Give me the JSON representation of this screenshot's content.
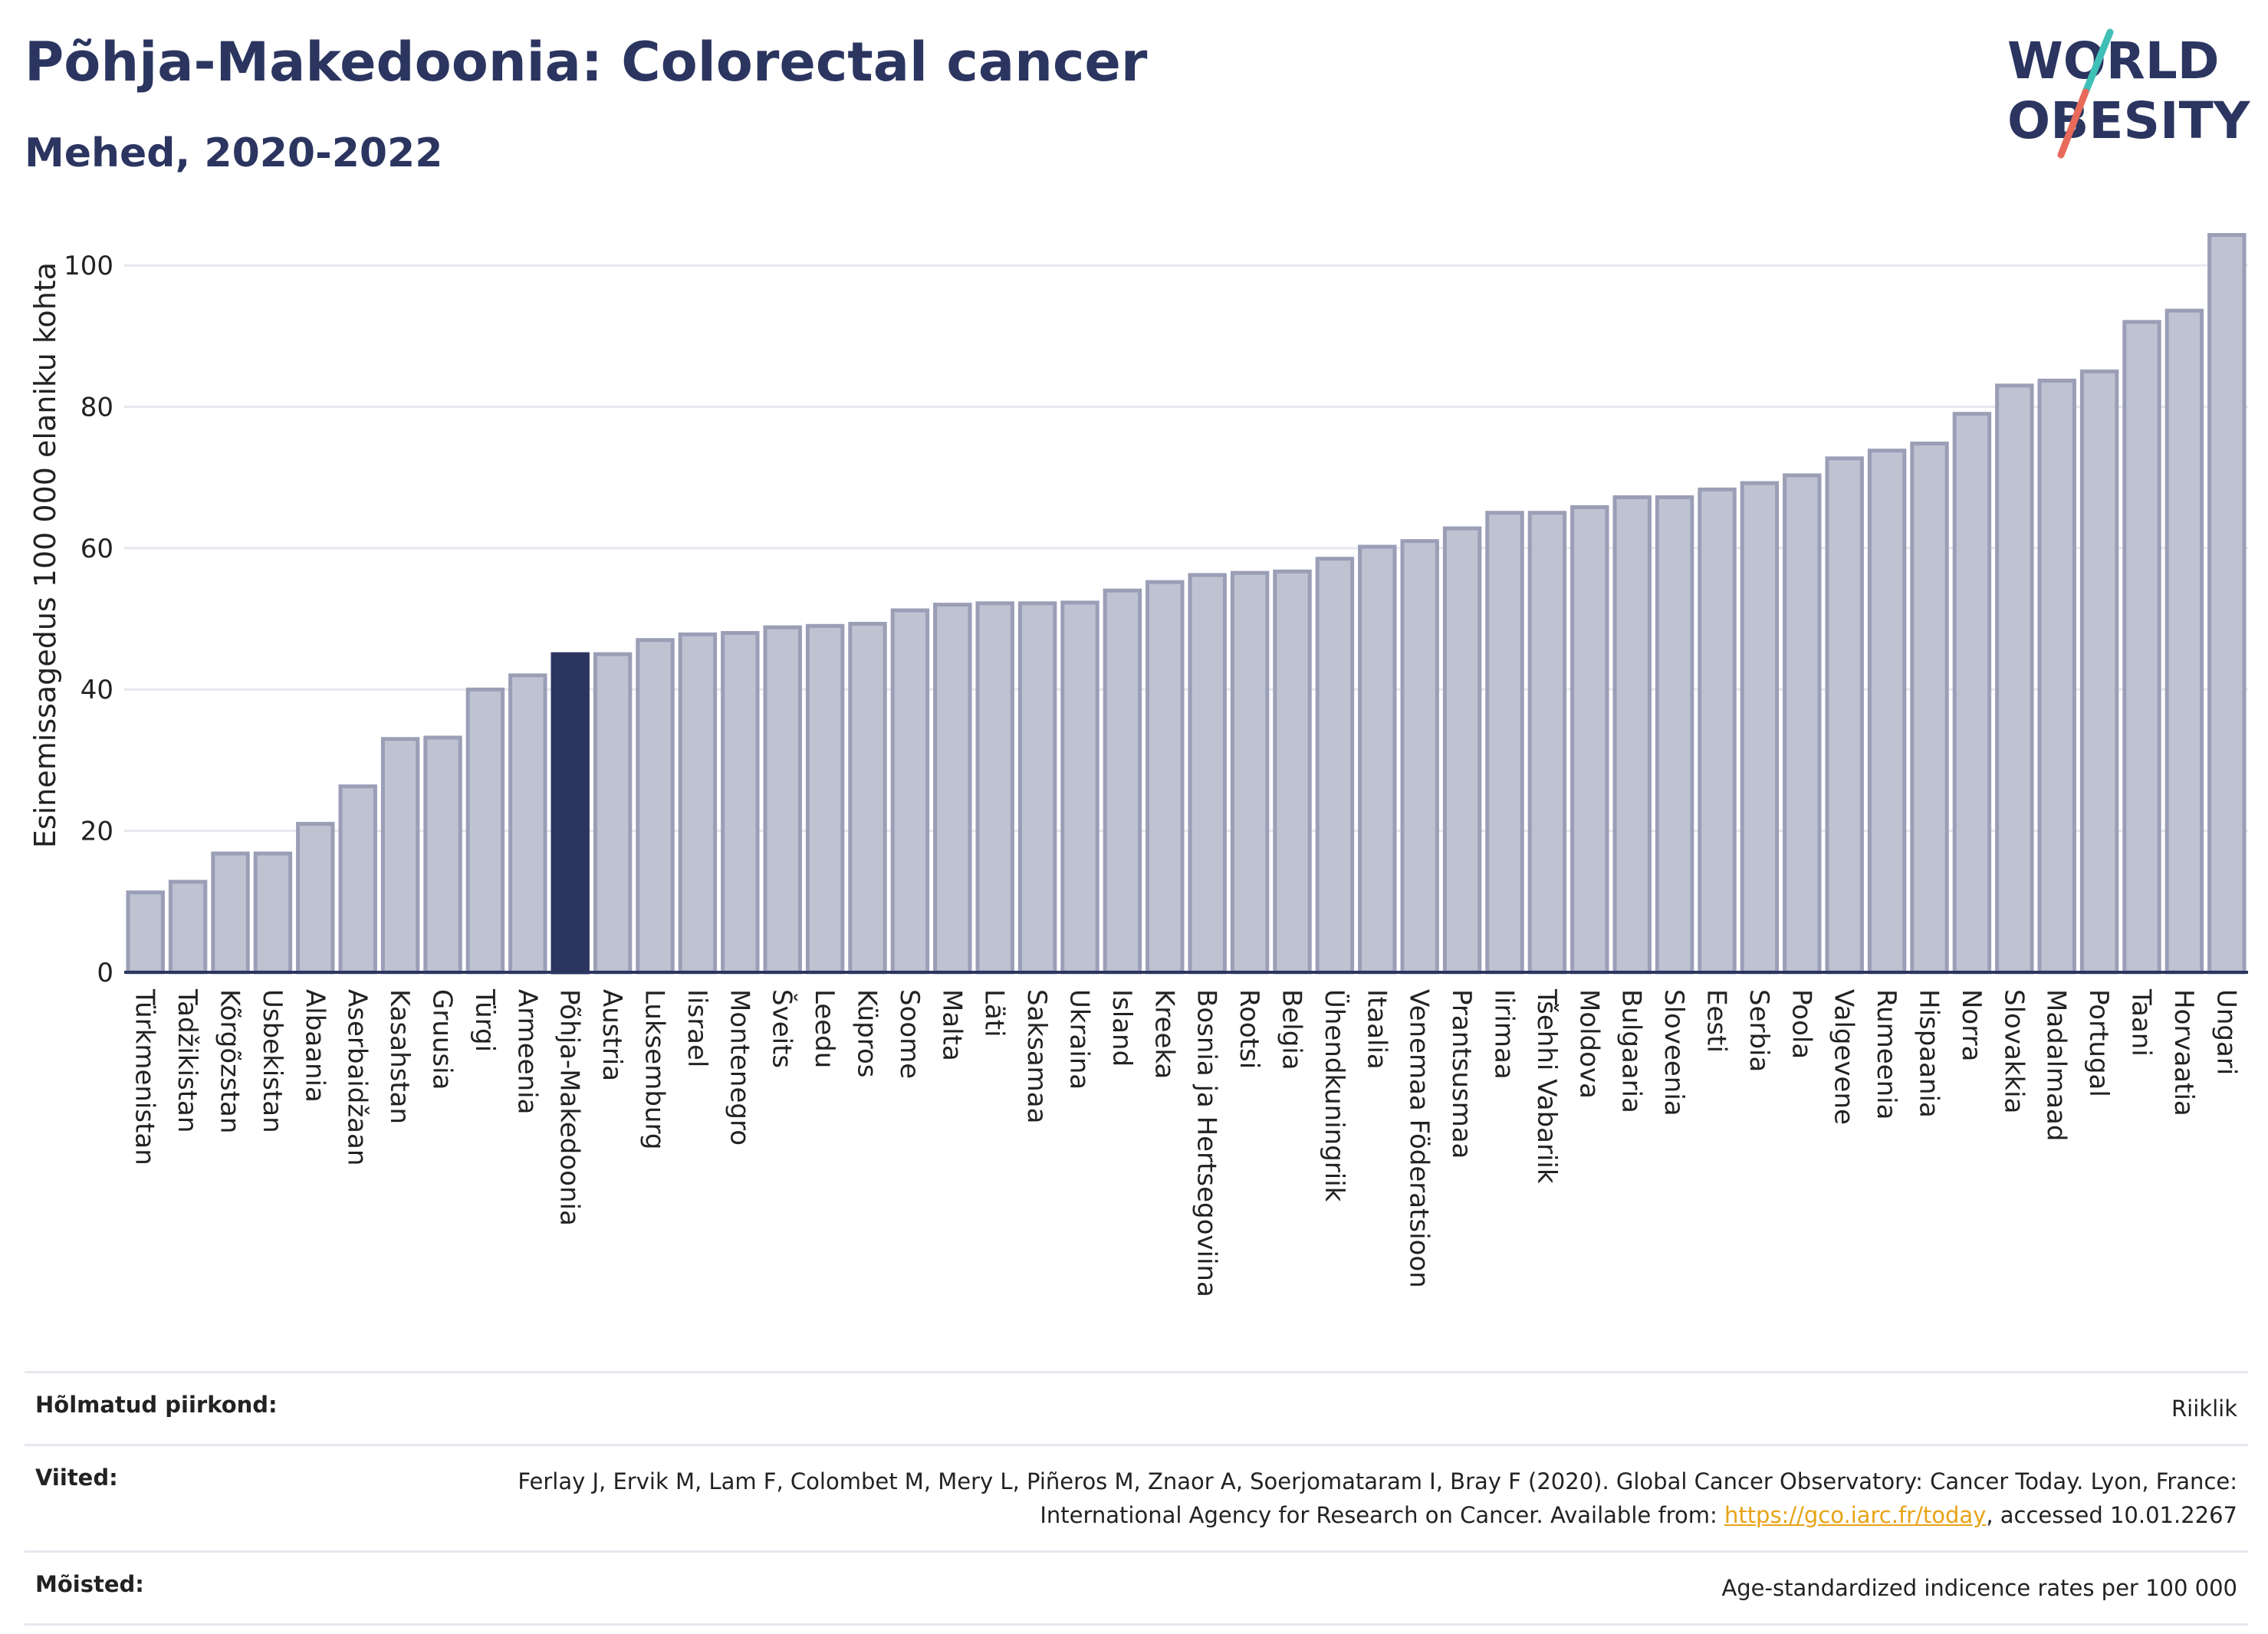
{
  "header": {
    "title": "Põhja-Makedoonia: Colorectal cancer",
    "subtitle": "Mehed, 2020-2022"
  },
  "logo": {
    "line1": "WORLD",
    "line2": "OBESITY",
    "colors": {
      "text": "#2b3560",
      "slash_teal": "#3fbfb5",
      "slash_red": "#e86a5a"
    }
  },
  "chart_data": {
    "type": "bar",
    "title": "Põhja-Makedoonia: Colorectal cancer",
    "subtitle": "Mehed, 2020-2022",
    "ylabel": "Esinemissagedus 100 000 elaniku kohta",
    "xlabel": "",
    "ylim": [
      0,
      105
    ],
    "yticks": [
      0,
      20,
      40,
      60,
      80,
      100
    ],
    "grid": true,
    "highlight": "Põhja-Makedoonia",
    "colors": {
      "bar": "#bfc2d1",
      "bar_border": "#9a9eb6",
      "highlight": "#2b3560"
    },
    "categories": [
      "Türkmenistan",
      "Tadžikistan",
      "Kõrgõzstan",
      "Usbekistan",
      "Albaania",
      "Aserbaidžaan",
      "Kasahstan",
      "Gruusia",
      "Türgi",
      "Armeenia",
      "Põhja-Makedoonia",
      "Austria",
      "Luksemburg",
      "Iisrael",
      "Montenegro",
      "Šveits",
      "Leedu",
      "Küpros",
      "Soome",
      "Malta",
      "Läti",
      "Saksamaa",
      "Ukraina",
      "Island",
      "Kreeka",
      "Bosnia ja Hertsegoviina",
      "Rootsi",
      "Belgia",
      "Ühendkuningriik",
      "Itaalia",
      "Venemaa Föderatsioon",
      "Prantsusmaa",
      "Iirimaa",
      "Tšehhi Vabariik",
      "Moldova",
      "Bulgaaria",
      "Sloveenia",
      "Eesti",
      "Serbia",
      "Poola",
      "Valgevene",
      "Rumeenia",
      "Hispaania",
      "Norra",
      "Slovakkia",
      "Madalmaad",
      "Portugal",
      "Taani",
      "Horvaatia",
      "Ungari"
    ],
    "values": [
      11.3,
      12.8,
      16.8,
      16.8,
      21.0,
      26.3,
      33.0,
      33.2,
      40.0,
      42.0,
      45.0,
      45.0,
      47.0,
      47.8,
      48.0,
      48.8,
      49.0,
      49.3,
      51.2,
      52.0,
      52.2,
      52.2,
      52.3,
      54.0,
      55.2,
      56.2,
      56.5,
      56.7,
      58.5,
      60.2,
      61.0,
      62.8,
      65.0,
      65.0,
      65.8,
      67.2,
      67.2,
      68.3,
      69.2,
      70.3,
      72.7,
      73.8,
      74.8,
      79.0,
      83.0,
      83.7,
      85.0,
      92.0,
      93.6,
      104.3
    ]
  },
  "footer": {
    "rows": [
      {
        "label": "Hõlmatud piirkond:",
        "value": "Riiklik"
      },
      {
        "label": "Viited:",
        "value": "Ferlay J, Ervik M, Lam F, Colombet M, Mery L, Piñeros M, Znaor A, Soerjomataram I, Bray F (2020). Global Cancer Observatory: Cancer Today. Lyon, France: International Agency for Research on Cancer. Available from: ",
        "link": "https://gco.iarc.fr/today",
        "value_after": ", accessed 10.01.2267"
      },
      {
        "label": "Mõisted:",
        "value": "Age-standardized indicence rates per 100 000"
      }
    ]
  }
}
